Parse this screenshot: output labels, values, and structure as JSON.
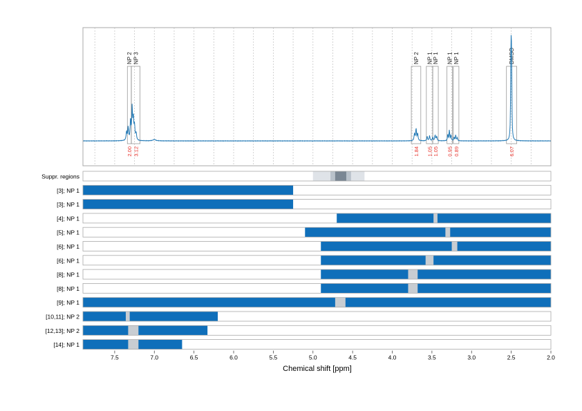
{
  "chart_data": {
    "type": "nmr-spectrum",
    "xlabel": "Chemical shift [ppm]",
    "xlim": [
      7.9,
      2.0
    ],
    "x_reversed": true,
    "x_ticks": [
      7.5,
      7.0,
      6.5,
      6.0,
      5.5,
      5.0,
      4.5,
      4.0,
      3.5,
      3.0,
      2.5,
      2.0
    ],
    "x_tick_labels": [
      "7.5",
      "7.0",
      "6.5",
      "6.0",
      "5.5",
      "5.0",
      "4.5",
      "4.0",
      "3.5",
      "3.0",
      "2.5",
      "2.0"
    ],
    "grid_minor_step": 0.25,
    "spectrum": {
      "color": "#1f77b4",
      "peaks": [
        {
          "ppm": 7.35,
          "height": 0.12,
          "width": 0.007
        },
        {
          "ppm": 7.33,
          "height": 0.18,
          "width": 0.006
        },
        {
          "ppm": 7.3,
          "height": 0.28,
          "width": 0.006
        },
        {
          "ppm": 7.28,
          "height": 0.45,
          "width": 0.006
        },
        {
          "ppm": 7.265,
          "height": 0.3,
          "width": 0.006
        },
        {
          "ppm": 7.25,
          "height": 0.2,
          "width": 0.006
        },
        {
          "ppm": 7.23,
          "height": 0.1,
          "width": 0.007
        },
        {
          "ppm": 7.0,
          "height": 0.02,
          "width": 0.02
        },
        {
          "ppm": 3.72,
          "height": 0.1,
          "width": 0.006
        },
        {
          "ppm": 3.7,
          "height": 0.17,
          "width": 0.006
        },
        {
          "ppm": 3.68,
          "height": 0.1,
          "width": 0.006
        },
        {
          "ppm": 3.56,
          "height": 0.06,
          "width": 0.006
        },
        {
          "ppm": 3.53,
          "height": 0.07,
          "width": 0.006
        },
        {
          "ppm": 3.49,
          "height": 0.05,
          "width": 0.006
        },
        {
          "ppm": 3.46,
          "height": 0.08,
          "width": 0.006
        },
        {
          "ppm": 3.44,
          "height": 0.06,
          "width": 0.006
        },
        {
          "ppm": 3.3,
          "height": 0.09,
          "width": 0.005
        },
        {
          "ppm": 3.28,
          "height": 0.15,
          "width": 0.005
        },
        {
          "ppm": 3.26,
          "height": 0.08,
          "width": 0.005
        },
        {
          "ppm": 3.22,
          "height": 0.05,
          "width": 0.005
        },
        {
          "ppm": 3.2,
          "height": 0.08,
          "width": 0.005
        },
        {
          "ppm": 3.18,
          "height": 0.04,
          "width": 0.005
        },
        {
          "ppm": 2.505,
          "height": 0.78,
          "width": 0.004
        },
        {
          "ppm": 2.5,
          "height": 0.95,
          "width": 0.004
        },
        {
          "ppm": 2.495,
          "height": 0.78,
          "width": 0.004
        }
      ]
    },
    "peak_annotations": [
      {
        "label": "NP 2",
        "range": [
          7.34,
          7.29
        ],
        "integral": "2.00"
      },
      {
        "label": "NP 3",
        "range": [
          7.29,
          7.18
        ],
        "integral": "3.12"
      },
      {
        "label": "NP 2",
        "range": [
          3.76,
          3.64
        ],
        "integral": "1.84"
      },
      {
        "label": "NP 1",
        "range": [
          3.57,
          3.49
        ],
        "integral": "1.05"
      },
      {
        "label": "NP 1",
        "range": [
          3.49,
          3.42
        ],
        "integral": "1.05"
      },
      {
        "label": "NP 1",
        "range": [
          3.31,
          3.24
        ],
        "integral": "0.95"
      },
      {
        "label": "NP 1",
        "range": [
          3.23,
          3.16
        ],
        "integral": "0.89"
      },
      {
        "label": "DMSO",
        "range": [
          2.56,
          2.43
        ],
        "integral": "6.07"
      }
    ],
    "suppression_regions": {
      "label": "Suppr. regions",
      "bands": [
        {
          "range": [
            5.0,
            4.35
          ],
          "shade": "#dfe3e8"
        },
        {
          "range": [
            4.78,
            4.52
          ],
          "shade": "#b9c2cb"
        },
        {
          "range": [
            4.72,
            4.58
          ],
          "shade": "#7a8794"
        }
      ]
    },
    "range_rows": [
      {
        "label": "[3]; NP 1",
        "bars": [
          [
            7.9,
            5.25
          ]
        ],
        "gaps": []
      },
      {
        "label": "[3]; NP 1",
        "bars": [
          [
            7.9,
            5.25
          ]
        ],
        "gaps": []
      },
      {
        "label": "[4]; NP 1",
        "bars": [
          [
            4.7,
            2.0
          ]
        ],
        "gaps": [
          [
            3.48,
            3.43
          ]
        ]
      },
      {
        "label": "[5]; NP 1",
        "bars": [
          [
            5.1,
            2.0
          ]
        ],
        "gaps": [
          [
            3.33,
            3.27
          ]
        ]
      },
      {
        "label": "[6]; NP 1",
        "bars": [
          [
            4.9,
            2.0
          ]
        ],
        "gaps": [
          [
            3.25,
            3.18
          ]
        ]
      },
      {
        "label": "[6]; NP 1",
        "bars": [
          [
            4.9,
            2.0
          ]
        ],
        "gaps": [
          [
            3.58,
            3.48
          ]
        ]
      },
      {
        "label": "[8]; NP 1",
        "bars": [
          [
            4.9,
            2.0
          ]
        ],
        "gaps": [
          [
            3.8,
            3.68
          ]
        ]
      },
      {
        "label": "[8]; NP 1",
        "bars": [
          [
            4.9,
            2.0
          ]
        ],
        "gaps": [
          [
            3.8,
            3.68
          ]
        ]
      },
      {
        "label": "[9]; NP 1",
        "bars": [
          [
            7.9,
            2.0
          ]
        ],
        "gaps": [
          [
            4.72,
            4.59
          ]
        ]
      },
      {
        "label": "[10,11]; NP 2",
        "bars": [
          [
            7.9,
            6.2
          ]
        ],
        "gaps": [
          [
            7.36,
            7.31
          ]
        ]
      },
      {
        "label": "[12,13]; NP 2",
        "bars": [
          [
            7.9,
            6.33
          ]
        ],
        "gaps": [
          [
            7.33,
            7.2
          ]
        ]
      },
      {
        "label": "[14]; NP 1",
        "bars": [
          [
            7.9,
            6.65
          ]
        ],
        "gaps": [
          [
            7.33,
            7.2
          ]
        ]
      }
    ],
    "colors": {
      "spectrum": "#1f77b4",
      "bar": "#0f6fba",
      "gap": "#c8cdd2",
      "integral_text": "#e8332c",
      "grid": "#c8c8c8",
      "frame": "#a8a8a8"
    }
  }
}
